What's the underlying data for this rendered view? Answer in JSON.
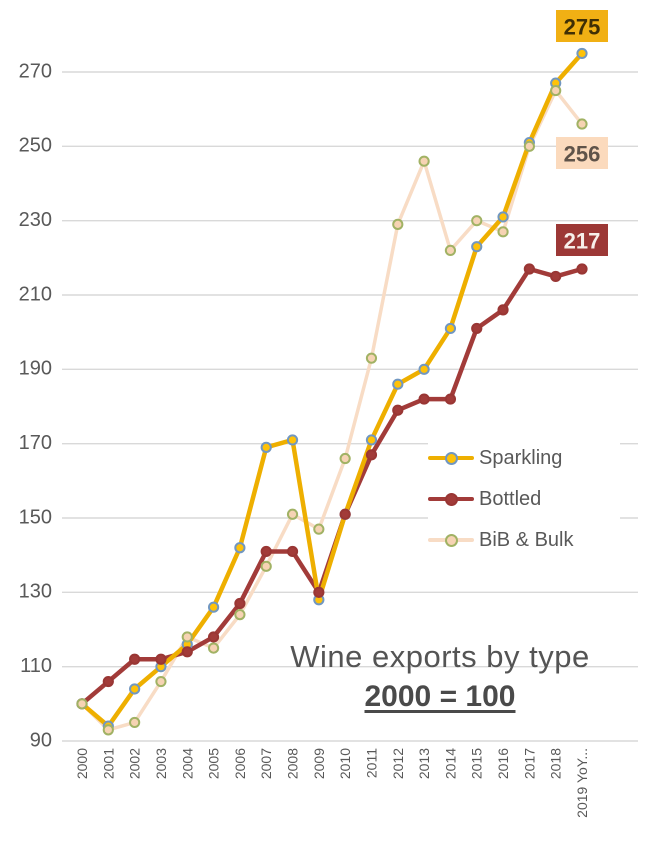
{
  "title": {
    "main": "Wine exports by type",
    "index_note": "2000 = 100"
  },
  "colors": {
    "gridline": "#d9d9d9",
    "axis_text": "#595959",
    "title_text": "#545454",
    "background": "#ffffff"
  },
  "chart_data": {
    "type": "line",
    "title": "Wine exports by type",
    "subtitle": "2000 = 100",
    "grid": true,
    "legend_position": "middle-right",
    "ylim": [
      90,
      282
    ],
    "yticks": [
      90,
      110,
      130,
      150,
      170,
      190,
      210,
      230,
      250,
      270
    ],
    "categories": [
      "2000",
      "2001",
      "2002",
      "2003",
      "2004",
      "2005",
      "2006",
      "2007",
      "2008",
      "2009",
      "2010",
      "2011",
      "2012",
      "2013",
      "2014",
      "2015",
      "2016",
      "2017",
      "2018",
      "2019 YoY..."
    ],
    "series": [
      {
        "name": "BiB & Bulk",
        "values": [
          100,
          93,
          95,
          106,
          118,
          115,
          124,
          137,
          151,
          147,
          166,
          193,
          229,
          246,
          222,
          230,
          227,
          250,
          265,
          256
        ],
        "line_color": "#f8dcc5",
        "line_width": 3.5,
        "marker_fill": "#f6d3b3",
        "marker_ring": "#a1b264",
        "end_label": {
          "text": "256",
          "bg": "#fbdabd",
          "color": "#5f5349"
        }
      },
      {
        "name": "Bottled",
        "values": [
          100,
          106,
          112,
          112,
          114,
          118,
          127,
          141,
          141,
          130,
          151,
          167,
          179,
          182,
          182,
          201,
          206,
          217,
          215,
          217
        ],
        "line_color": "#a23b39",
        "line_width": 4.5,
        "marker_fill": "#a23b39",
        "marker_ring": "#993634",
        "end_label": {
          "text": "217",
          "bg": "#9c3836",
          "color": "#f7efea"
        }
      },
      {
        "name": "Sparkling",
        "values": [
          100,
          94,
          104,
          110,
          116,
          126,
          142,
          169,
          171,
          128,
          151,
          171,
          186,
          190,
          201,
          223,
          231,
          251,
          267,
          275
        ],
        "line_color": "#eeaf00",
        "line_width": 4.5,
        "marker_fill": "#ffc208",
        "marker_ring": "#7197c1",
        "end_label": {
          "text": "275",
          "bg": "#f1b014",
          "color": "#3f2f05"
        }
      }
    ],
    "legend_order": [
      "Sparkling",
      "Bottled",
      "BiB & Bulk"
    ],
    "end_label_positions": {
      "Sparkling": 10,
      "BiB & Bulk": 137,
      "Bottled": 224
    }
  }
}
